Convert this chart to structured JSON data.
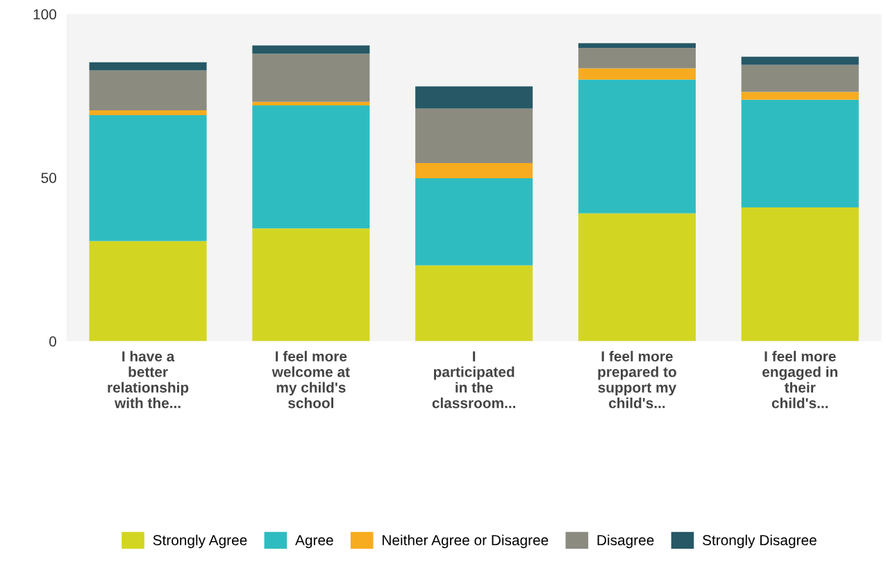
{
  "chart_data": {
    "type": "bar",
    "stacked": true,
    "categories": [
      "I have a\nbetter\nrelationship\nwith the...",
      "I feel more\nwelcome at\nmy child's\nschool",
      "I\nparticipated\nin the\nclassroom...",
      "I feel more\nprepared to\nsupport my\nchild's...",
      "I feel more\nengaged in\ntheir\nchild's..."
    ],
    "series": [
      {
        "name": "Strongly Agree",
        "color": "#d2d622",
        "values": [
          30.6,
          34.5,
          23.2,
          39.1,
          40.9
        ]
      },
      {
        "name": "Agree",
        "color": "#2fbcc0",
        "values": [
          38.5,
          37.6,
          26.6,
          40.9,
          32.9
        ]
      },
      {
        "name": "Neither Agree or Disagree",
        "color": "#f7ac1f",
        "values": [
          1.5,
          1.1,
          4.7,
          3.4,
          2.4
        ]
      },
      {
        "name": "Disagree",
        "color": "#8c8b80",
        "values": [
          12.2,
          14.7,
          16.6,
          6.2,
          8.3
        ]
      },
      {
        "name": "Strongly Disagree",
        "color": "#265866",
        "values": [
          2.5,
          2.5,
          6.8,
          1.5,
          2.5
        ]
      }
    ],
    "ylim": [
      0,
      100
    ],
    "yticks": [
      0,
      50,
      100
    ],
    "grid": false,
    "legend": "bottom"
  }
}
